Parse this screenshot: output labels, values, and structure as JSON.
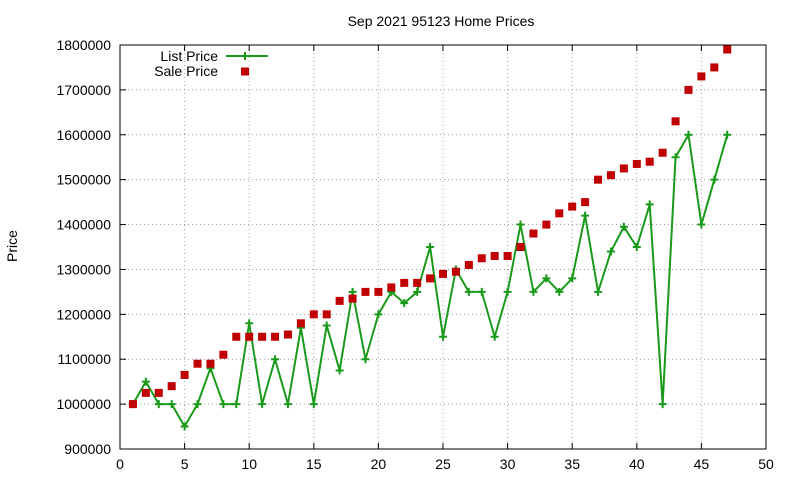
{
  "chart_data": {
    "type": "line",
    "title": "Sep 2021 95123 Home Prices",
    "xlabel": "",
    "ylabel": "Price",
    "xlim": [
      0,
      50
    ],
    "ylim": [
      900000,
      1800000
    ],
    "xticks": [
      0,
      5,
      10,
      15,
      20,
      25,
      30,
      35,
      40,
      45,
      50
    ],
    "yticks": [
      900000,
      1000000,
      1100000,
      1200000,
      1300000,
      1400000,
      1500000,
      1600000,
      1700000,
      1800000
    ],
    "grid": true,
    "legend_position": "top-left",
    "series": [
      {
        "name": "List Price",
        "style": "line-with-plus-markers",
        "color": "#1a9a1a",
        "x": [
          1,
          2,
          3,
          4,
          5,
          6,
          7,
          8,
          9,
          10,
          11,
          12,
          13,
          14,
          15,
          16,
          17,
          18,
          19,
          20,
          21,
          22,
          23,
          24,
          25,
          26,
          27,
          28,
          29,
          30,
          31,
          32,
          33,
          34,
          35,
          36,
          37,
          38,
          39,
          40,
          41,
          42,
          43,
          44,
          45,
          46,
          47
        ],
        "values": [
          1000000,
          1050000,
          1000000,
          1000000,
          950000,
          1000000,
          1080000,
          1000000,
          1000000,
          1180000,
          1000000,
          1100000,
          1000000,
          1170000,
          1000000,
          1175000,
          1075000,
          1250000,
          1100000,
          1200000,
          1250000,
          1225000,
          1250000,
          1350000,
          1150000,
          1300000,
          1250000,
          1250000,
          1150000,
          1250000,
          1400000,
          1250000,
          1280000,
          1250000,
          1280000,
          1420000,
          1250000,
          1340000,
          1395000,
          1350000,
          1445000,
          1000000,
          1550000,
          1600000,
          1400000,
          1500000,
          1600000
        ]
      },
      {
        "name": "Sale Price",
        "style": "square-markers",
        "color": "#c00000",
        "x": [
          1,
          2,
          3,
          4,
          5,
          6,
          7,
          8,
          9,
          10,
          11,
          12,
          13,
          14,
          15,
          16,
          17,
          18,
          19,
          20,
          21,
          22,
          23,
          24,
          25,
          26,
          27,
          28,
          29,
          30,
          31,
          32,
          33,
          34,
          35,
          36,
          37,
          38,
          39,
          40,
          41,
          42,
          43,
          44,
          45,
          46,
          47
        ],
        "values": [
          1000000,
          1025000,
          1025000,
          1040000,
          1065000,
          1090000,
          1090000,
          1110000,
          1150000,
          1150000,
          1150000,
          1150000,
          1155000,
          1180000,
          1200000,
          1200000,
          1230000,
          1235000,
          1250000,
          1250000,
          1260000,
          1270000,
          1270000,
          1280000,
          1290000,
          1295000,
          1310000,
          1325000,
          1330000,
          1330000,
          1350000,
          1380000,
          1400000,
          1425000,
          1440000,
          1450000,
          1500000,
          1510000,
          1525000,
          1535000,
          1540000,
          1560000,
          1630000,
          1700000,
          1730000,
          1750000,
          1790000
        ]
      }
    ]
  }
}
